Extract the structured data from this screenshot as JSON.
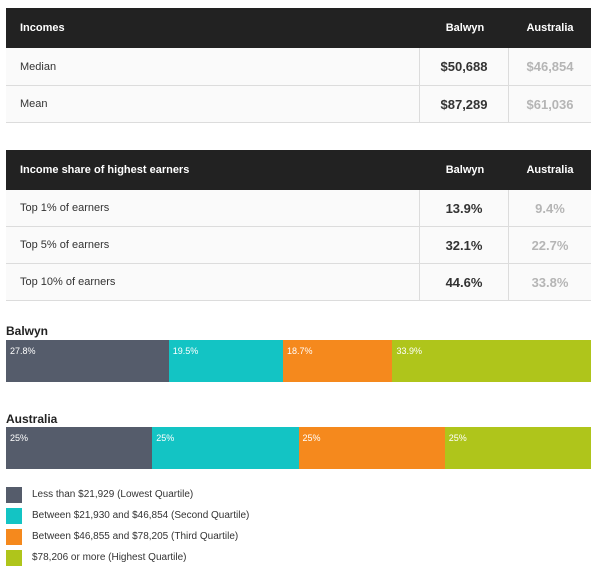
{
  "incomes": {
    "header": {
      "title": "Incomes",
      "col1": "Balwyn",
      "col2": "Australia"
    },
    "rows": [
      {
        "label": "Median",
        "balwyn": "$50,688",
        "australia": "$46,854"
      },
      {
        "label": "Mean",
        "balwyn": "$87,289",
        "australia": "$61,036"
      }
    ]
  },
  "income_share": {
    "header": {
      "title": "Income share of highest earners",
      "col1": "Balwyn",
      "col2": "Australia"
    },
    "rows": [
      {
        "label": "Top 1% of earners",
        "balwyn": "13.9%",
        "australia": "9.4%"
      },
      {
        "label": "Top 5% of earners",
        "balwyn": "32.1%",
        "australia": "22.7%"
      },
      {
        "label": "Top 10% of earners",
        "balwyn": "44.6%",
        "australia": "33.8%"
      }
    ]
  },
  "colors": {
    "q1": "#555c6b",
    "q2": "#13c4c4",
    "q3": "#f5891d",
    "q4": "#afc51b"
  },
  "chart_data": {
    "type": "bar",
    "stacked": true,
    "orientation": "horizontal",
    "categories": [
      "Balwyn",
      "Australia"
    ],
    "series": [
      {
        "name": "Less than $21,929 (Lowest Quartile)",
        "values": [
          27.8,
          25
        ],
        "labels": [
          "27.8%",
          "25%"
        ]
      },
      {
        "name": "Between $21,930 and $46,854 (Second Quartile)",
        "values": [
          19.5,
          25
        ],
        "labels": [
          "19.5%",
          "25%"
        ]
      },
      {
        "name": "Between $46,855 and $78,205 (Third Quartile)",
        "values": [
          18.7,
          25
        ],
        "labels": [
          "18.7%",
          "25%"
        ]
      },
      {
        "name": "$78,206 or more (Highest Quartile)",
        "values": [
          33.9,
          25
        ],
        "labels": [
          "33.9%",
          "25%"
        ]
      }
    ],
    "legend": [
      "Less than $21,929 (Lowest Quartile)",
      "Between $21,930 and $46,854 (Second Quartile)",
      "Between $46,855 and $78,205 (Third Quartile)",
      "$78,206 or more (Highest Quartile)"
    ]
  }
}
